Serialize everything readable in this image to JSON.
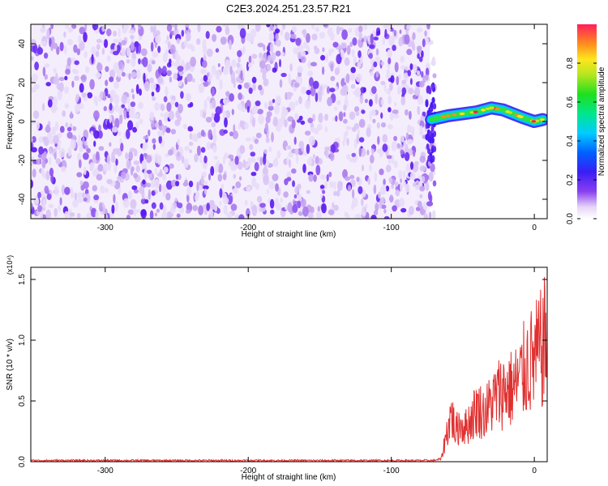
{
  "title": "C2E3.2024.251.23.57.R21",
  "chart_data": [
    {
      "type": "heatmap",
      "xlabel": "Height of straight line (km)",
      "ylabel": "Frequency (Hz)",
      "xlim": [
        -352,
        9
      ],
      "ylim": [
        -50,
        50
      ],
      "xticks": [
        -300,
        -200,
        -100,
        0
      ],
      "yticks": [
        -40,
        -20,
        0,
        20,
        40
      ],
      "noise_region_x": [
        -352,
        -73
      ],
      "signal_track": {
        "x": [
          -72,
          -60,
          -50,
          -40,
          -30,
          -22,
          -15,
          -8,
          0,
          6
        ],
        "y": [
          1,
          3,
          4,
          5,
          7,
          6,
          4,
          2,
          0,
          1
        ]
      },
      "colorbar": {
        "label": "Normalized spectral amplitude",
        "ticks": [
          0.0,
          0.2,
          0.4,
          0.6,
          0.8
        ],
        "range": [
          0,
          1
        ]
      }
    },
    {
      "type": "line",
      "xlabel": "Height of straight line (km)",
      "ylabel": "SNR (10 * v/v)",
      "multiplier": "(x10⁴)",
      "xlim": [
        -352,
        9
      ],
      "ylim": [
        0,
        1.6
      ],
      "xticks": [
        -300,
        -200,
        -100,
        0
      ],
      "yticks": [
        0.0,
        0.5,
        1.0,
        1.5
      ],
      "line_color": "#e03030",
      "series": [
        {
          "x": [
            -352,
            -100,
            -70,
            -65,
            -62,
            -58,
            -55,
            -52,
            -48,
            -44,
            -40,
            -35,
            -30,
            -25,
            -20,
            -15,
            -10,
            -5,
            0,
            5,
            9
          ],
          "y": [
            0.01,
            0.01,
            0.01,
            0.03,
            0.25,
            0.5,
            0.3,
            0.4,
            0.35,
            0.45,
            0.55,
            0.5,
            0.6,
            0.7,
            0.75,
            0.75,
            0.85,
            1.0,
            1.05,
            1.15,
            1.3
          ]
        }
      ]
    }
  ]
}
